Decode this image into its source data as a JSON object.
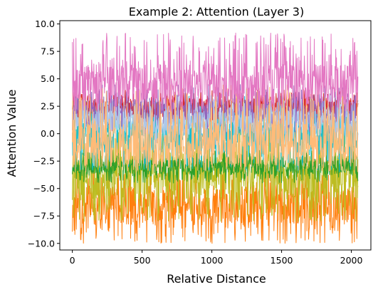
{
  "chart_data": {
    "type": "line",
    "title": "Example 2: Attention (Layer 3)",
    "xlabel": "Relative Distance",
    "ylabel": "Attention Value",
    "xlim": [
      -90,
      2140
    ],
    "ylim": [
      -10.6,
      10.3
    ],
    "x_ticks": [
      0,
      500,
      1000,
      1500,
      2000
    ],
    "x_tick_labels": [
      "0",
      "500",
      "1000",
      "1500",
      "2000"
    ],
    "y_ticks": [
      -10.0,
      -7.5,
      -5.0,
      -2.5,
      0.0,
      2.5,
      5.0,
      7.5,
      10.0
    ],
    "y_tick_labels": [
      "−10.0",
      "−7.5",
      "−5.0",
      "−2.5",
      "0.0",
      "2.5",
      "5.0",
      "7.5",
      "10.0"
    ],
    "grid": false,
    "legend": "none",
    "x_range": [
      0,
      2047
    ],
    "series": [
      {
        "color": "#ff7f0e",
        "center": -6.5,
        "min": -10.0,
        "max": -3.0
      },
      {
        "color": "#bcbd22",
        "center": -3.8,
        "min": -8.0,
        "max": 1.0
      },
      {
        "color": "#2ca02c",
        "center": -3.0,
        "min": -4.5,
        "max": -1.5
      },
      {
        "color": "#17becf",
        "center": 0.0,
        "min": -3.5,
        "max": 3.5
      },
      {
        "color": "#d62728",
        "center": 2.5,
        "min": 1.0,
        "max": 4.0
      },
      {
        "color": "#9467bd",
        "center": 2.0,
        "min": 0.0,
        "max": 4.5
      },
      {
        "color": "#aec7e8",
        "center": 1.0,
        "min": -1.0,
        "max": 3.5
      },
      {
        "color": "#ffbb78",
        "center": -1.0,
        "min": -3.5,
        "max": 4.5
      },
      {
        "color": "#e377c2",
        "center": 4.5,
        "min": 2.0,
        "max": 9.2
      }
    ]
  }
}
